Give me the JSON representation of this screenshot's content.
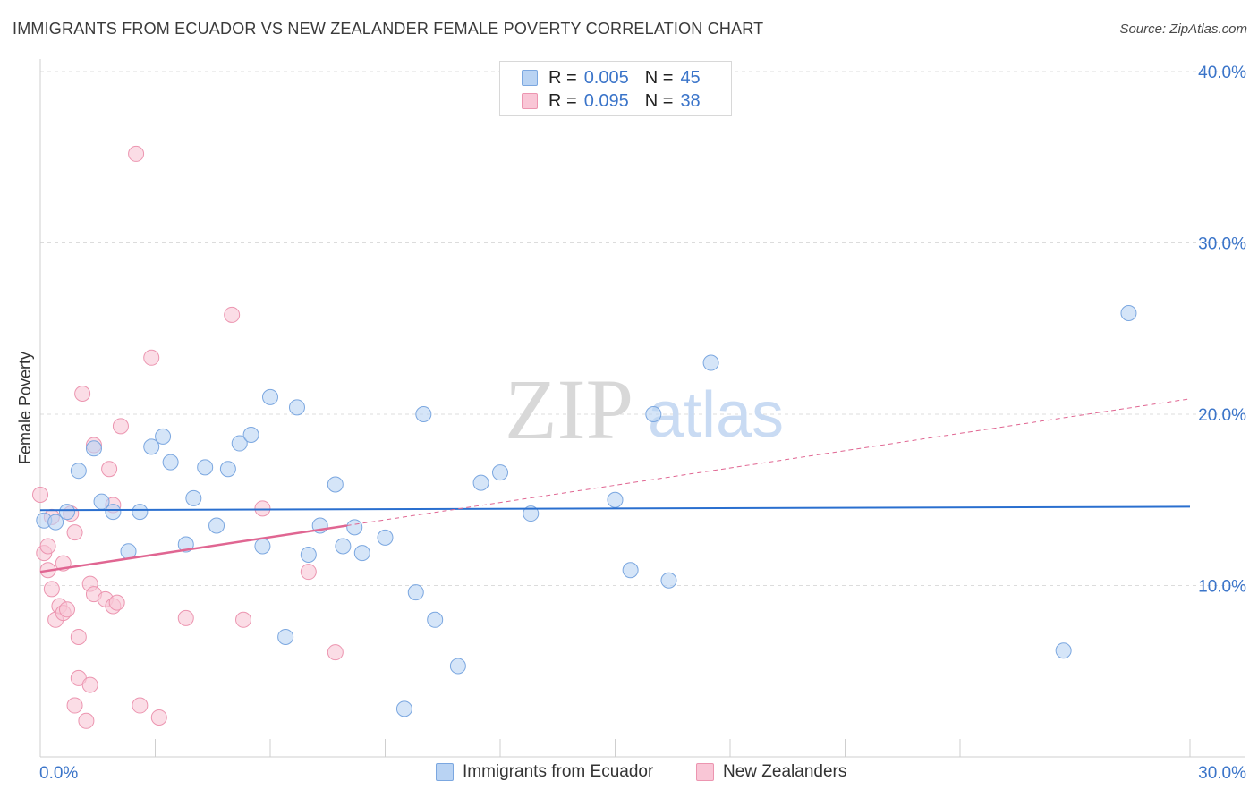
{
  "header": {
    "title": "IMMIGRANTS FROM ECUADOR VS NEW ZEALANDER FEMALE POVERTY CORRELATION CHART",
    "source": "Source: ZipAtlas.com"
  },
  "legend_top": {
    "rows": [
      {
        "r_label": "R =",
        "r_value": "0.005",
        "n_label": "N =",
        "n_value": "45"
      },
      {
        "r_label": "R =",
        "r_value": "0.095",
        "n_label": "N =",
        "n_value": "38"
      }
    ]
  },
  "legend_bottom": {
    "items": [
      "Immigrants from Ecuador",
      "New Zealanders"
    ]
  },
  "watermark": {
    "zip": "ZIP",
    "atlas": "atlas"
  },
  "colors": {
    "blue_fill": "#b9d3f3",
    "blue_stroke": "#7ba7e0",
    "blue_line": "#2a6fcf",
    "pink_fill": "#f9c6d6",
    "pink_stroke": "#ec95b0",
    "pink_line": "#e06692",
    "axis_text": "#3a74c9",
    "grid": "#dcdcdc"
  },
  "chart_data": {
    "type": "scatter",
    "title": "IMMIGRANTS FROM ECUADOR VS NEW ZEALANDER FEMALE POVERTY CORRELATION CHART",
    "xlabel": "",
    "ylabel": "Female Poverty",
    "xlim": [
      0,
      30
    ],
    "ylim": [
      0,
      40
    ],
    "x_tick_labels": [
      "0.0%",
      "30.0%"
    ],
    "y_ticks": [
      10,
      20,
      30,
      40
    ],
    "y_tick_labels": [
      "10.0%",
      "20.0%",
      "30.0%",
      "40.0%"
    ],
    "grid": true,
    "legend_position": "top-center",
    "series": [
      {
        "name": "Immigrants from Ecuador",
        "color": "#b9d3f3",
        "points": [
          [
            0.1,
            13.8
          ],
          [
            0.4,
            13.7
          ],
          [
            0.7,
            14.3
          ],
          [
            1.0,
            16.7
          ],
          [
            1.4,
            18.0
          ],
          [
            1.6,
            14.9
          ],
          [
            1.9,
            14.3
          ],
          [
            2.3,
            12.0
          ],
          [
            2.6,
            14.3
          ],
          [
            2.9,
            18.1
          ],
          [
            3.2,
            18.7
          ],
          [
            3.4,
            17.2
          ],
          [
            3.8,
            12.4
          ],
          [
            4.0,
            15.1
          ],
          [
            4.3,
            16.9
          ],
          [
            4.6,
            13.5
          ],
          [
            4.9,
            16.8
          ],
          [
            5.2,
            18.3
          ],
          [
            5.5,
            18.8
          ],
          [
            5.8,
            12.3
          ],
          [
            6.0,
            21.0
          ],
          [
            6.4,
            7.0
          ],
          [
            6.7,
            20.4
          ],
          [
            7.0,
            11.8
          ],
          [
            7.3,
            13.5
          ],
          [
            7.7,
            15.9
          ],
          [
            7.9,
            12.3
          ],
          [
            8.2,
            13.4
          ],
          [
            8.4,
            11.9
          ],
          [
            9.0,
            12.8
          ],
          [
            9.5,
            2.8
          ],
          [
            9.8,
            9.6
          ],
          [
            10.0,
            20.0
          ],
          [
            10.3,
            8.0
          ],
          [
            10.9,
            5.3
          ],
          [
            11.5,
            16.0
          ],
          [
            12.0,
            16.6
          ],
          [
            12.8,
            14.2
          ],
          [
            15.0,
            15.0
          ],
          [
            15.4,
            10.9
          ],
          [
            16.0,
            20.0
          ],
          [
            16.4,
            10.3
          ],
          [
            17.5,
            23.0
          ],
          [
            26.7,
            6.2
          ],
          [
            28.4,
            25.9
          ]
        ]
      },
      {
        "name": "New Zealanders",
        "color": "#f9c6d6",
        "points": [
          [
            0.0,
            15.3
          ],
          [
            0.1,
            11.9
          ],
          [
            0.2,
            10.9
          ],
          [
            0.2,
            12.3
          ],
          [
            0.3,
            9.8
          ],
          [
            0.4,
            8.0
          ],
          [
            0.5,
            8.8
          ],
          [
            0.6,
            11.3
          ],
          [
            0.6,
            8.4
          ],
          [
            0.7,
            8.6
          ],
          [
            0.8,
            14.2
          ],
          [
            0.9,
            3.0
          ],
          [
            0.9,
            13.1
          ],
          [
            1.0,
            4.6
          ],
          [
            1.0,
            7.0
          ],
          [
            1.1,
            21.2
          ],
          [
            1.2,
            2.1
          ],
          [
            1.3,
            10.1
          ],
          [
            1.3,
            4.2
          ],
          [
            1.4,
            18.2
          ],
          [
            1.4,
            9.5
          ],
          [
            1.7,
            9.2
          ],
          [
            1.8,
            16.8
          ],
          [
            1.9,
            8.8
          ],
          [
            1.9,
            14.7
          ],
          [
            2.0,
            9.0
          ],
          [
            2.1,
            19.3
          ],
          [
            2.5,
            35.2
          ],
          [
            2.6,
            3.0
          ],
          [
            2.9,
            23.3
          ],
          [
            3.1,
            2.3
          ],
          [
            3.8,
            8.1
          ],
          [
            5.0,
            25.8
          ],
          [
            5.3,
            8.0
          ],
          [
            5.8,
            14.5
          ],
          [
            7.0,
            10.8
          ],
          [
            7.7,
            6.1
          ],
          [
            0.3,
            14.0
          ]
        ]
      }
    ],
    "trend_lines": [
      {
        "series": "Immigrants from Ecuador",
        "x": [
          0,
          30
        ],
        "y": [
          14.4,
          14.6
        ]
      },
      {
        "series": "New Zealanders",
        "x": [
          0,
          8
        ],
        "y": [
          10.8,
          13.5
        ],
        "dashed_extension_to": [
          30,
          20.9
        ]
      }
    ]
  }
}
